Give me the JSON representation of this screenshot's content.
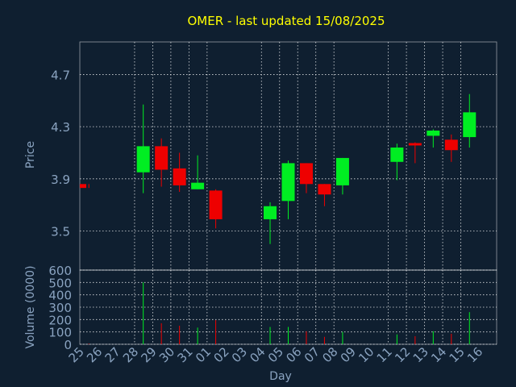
{
  "title": "OMER - last updated 15/08/2025",
  "chart_data": [
    {
      "type": "candlestick",
      "ylabel": "Price",
      "xlabel": "",
      "ylim": [
        3.2,
        4.95
      ],
      "yticks": [
        "3.5",
        "3.9",
        "4.3",
        "4.7"
      ],
      "grid": true,
      "candles": [
        {
          "day": "25",
          "open": 3.86,
          "close": 3.83,
          "high": 3.86,
          "low": 3.83
        },
        {
          "day": "28",
          "open": 3.95,
          "close": 4.15,
          "high": 4.47,
          "low": 3.79
        },
        {
          "day": "29",
          "open": 4.15,
          "close": 3.97,
          "high": 4.21,
          "low": 3.84
        },
        {
          "day": "30",
          "open": 3.98,
          "close": 3.85,
          "high": 4.1,
          "low": 3.8
        },
        {
          "day": "31",
          "open": 3.82,
          "close": 3.87,
          "high": 4.08,
          "low": 3.82
        },
        {
          "day": "01",
          "open": 3.81,
          "close": 3.59,
          "high": 3.82,
          "low": 3.52
        },
        {
          "day": "04",
          "open": 3.59,
          "close": 3.69,
          "high": 3.72,
          "low": 3.4
        },
        {
          "day": "05",
          "open": 3.73,
          "close": 4.02,
          "high": 4.04,
          "low": 3.59
        },
        {
          "day": "06",
          "open": 4.02,
          "close": 3.86,
          "high": 4.02,
          "low": 3.79
        },
        {
          "day": "07",
          "open": 3.86,
          "close": 3.78,
          "high": 3.86,
          "low": 3.69
        },
        {
          "day": "08",
          "open": 3.85,
          "close": 4.06,
          "high": 4.06,
          "low": 3.78
        },
        {
          "day": "11",
          "open": 4.03,
          "close": 4.14,
          "high": 4.17,
          "low": 3.89
        },
        {
          "day": "12",
          "open": 4.17,
          "close": 4.16,
          "high": 4.18,
          "low": 4.02
        },
        {
          "day": "13",
          "open": 4.23,
          "close": 4.27,
          "high": 4.28,
          "low": 4.14
        },
        {
          "day": "14",
          "open": 4.2,
          "close": 4.12,
          "high": 4.24,
          "low": 4.03
        },
        {
          "day": "15",
          "open": 4.22,
          "close": 4.41,
          "high": 4.55,
          "low": 4.14
        }
      ]
    },
    {
      "type": "bar",
      "ylabel": "Volume (0000)",
      "xlabel": "Day",
      "ylim": [
        0,
        600
      ],
      "yticks": [
        "0",
        "100",
        "200",
        "300",
        "400",
        "500",
        "600"
      ],
      "grid": true,
      "categories": [
        "25",
        "26",
        "27",
        "28",
        "29",
        "30",
        "31",
        "01",
        "02",
        "03",
        "04",
        "05",
        "06",
        "07",
        "08",
        "09",
        "10",
        "11",
        "12",
        "13",
        "14",
        "15",
        "16"
      ],
      "values": [
        {
          "day": "25",
          "value": 5,
          "direction": "down"
        },
        {
          "day": "28",
          "value": 500,
          "direction": "up"
        },
        {
          "day": "29",
          "value": 170,
          "direction": "down"
        },
        {
          "day": "30",
          "value": 150,
          "direction": "down"
        },
        {
          "day": "31",
          "value": 135,
          "direction": "up"
        },
        {
          "day": "01",
          "value": 195,
          "direction": "down"
        },
        {
          "day": "04",
          "value": 140,
          "direction": "up"
        },
        {
          "day": "05",
          "value": 140,
          "direction": "up"
        },
        {
          "day": "06",
          "value": 105,
          "direction": "down"
        },
        {
          "day": "07",
          "value": 60,
          "direction": "down"
        },
        {
          "day": "08",
          "value": 100,
          "direction": "up"
        },
        {
          "day": "11",
          "value": 80,
          "direction": "up"
        },
        {
          "day": "12",
          "value": 65,
          "direction": "down"
        },
        {
          "day": "13",
          "value": 105,
          "direction": "up"
        },
        {
          "day": "14",
          "value": 85,
          "direction": "down"
        },
        {
          "day": "15",
          "value": 260,
          "direction": "up"
        }
      ]
    }
  ],
  "colors": {
    "up": "#00ee22",
    "down": "#ee0000",
    "background": "#0f1f30",
    "title": "#ffff00",
    "axis_text": "#8aa3c0"
  }
}
